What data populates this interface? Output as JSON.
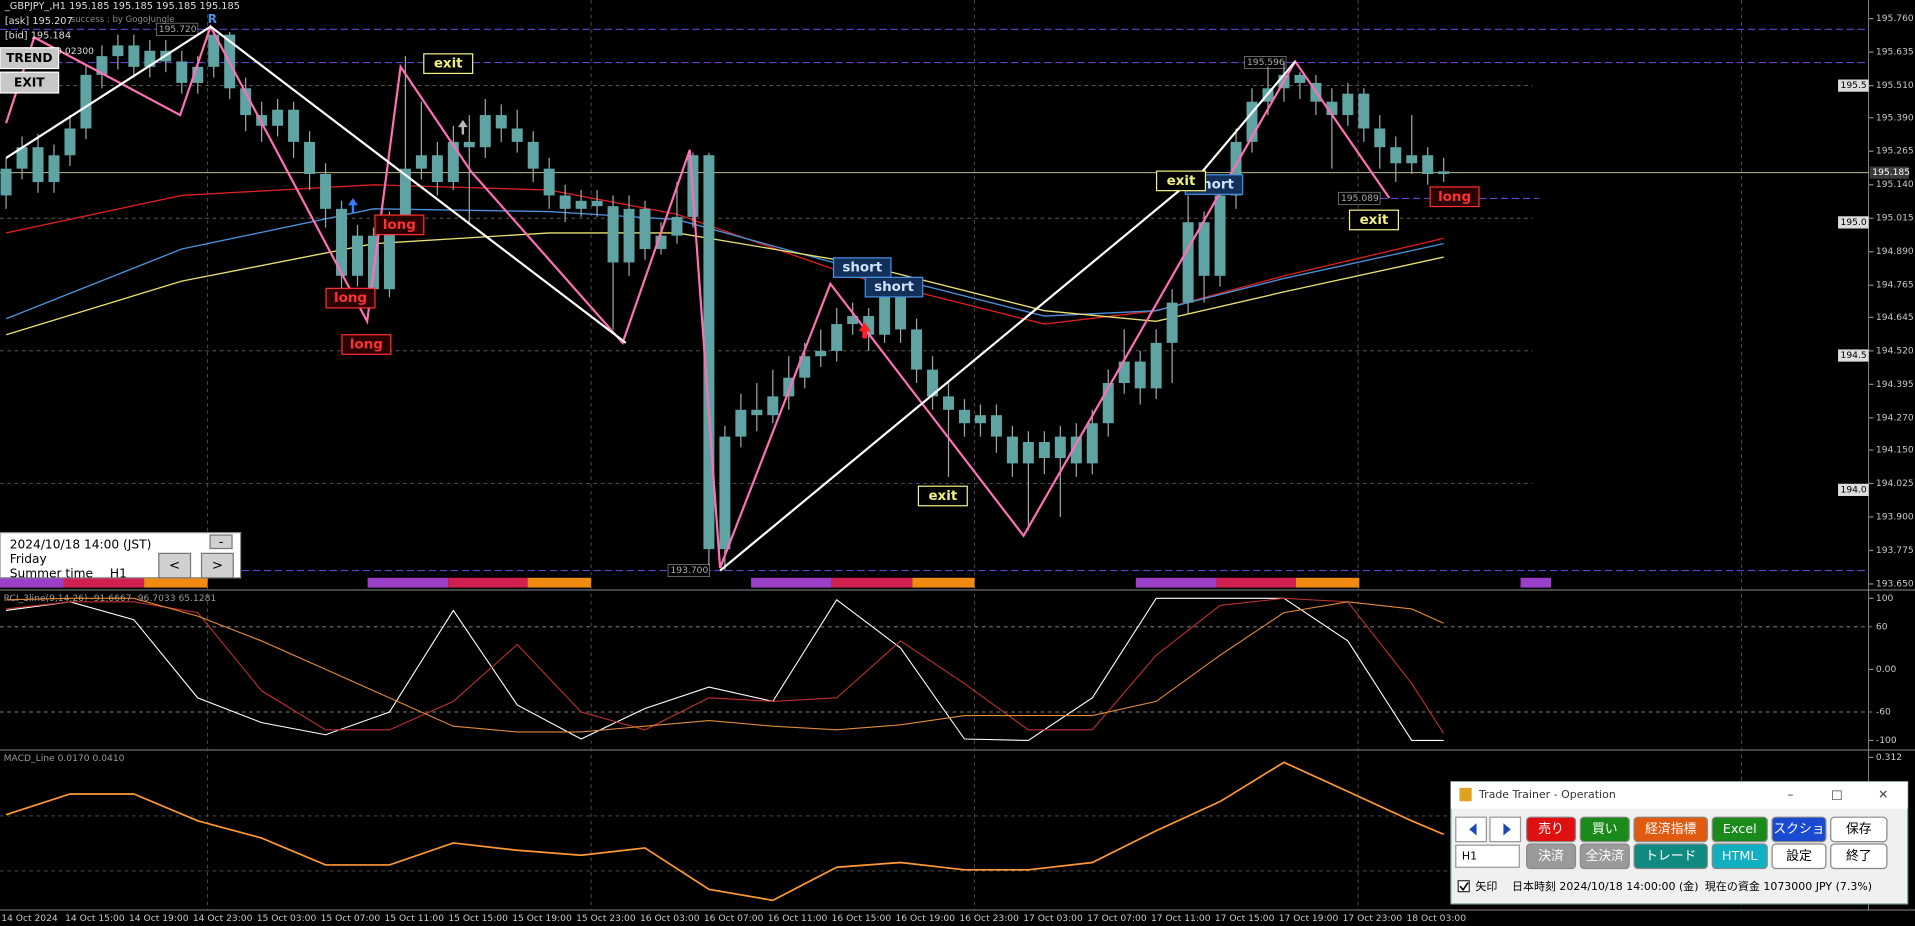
{
  "header": {
    "symbol_line": "_GBPJPY_,H1  195.185 195.185 195.185 195.185",
    "ask": "[ask] 195.207",
    "bid": "[bid] 195.184",
    "credit": "success : by GogoJungle",
    "spread": "0.02300",
    "marker": "R"
  },
  "buttons": [
    "TREND",
    "EXIT"
  ],
  "x_range": [
    -0.38,
    116.6
  ],
  "price_axis": {
    "ylim": [
      193.632,
      195.829
    ],
    "ticks": [
      {
        "value": 195.76,
        "label": "195.760"
      },
      {
        "value": 195.635,
        "label": "195.635"
      },
      {
        "value": 195.51,
        "label": "195.510"
      },
      {
        "value": 195.39,
        "label": "195.390"
      },
      {
        "value": 195.265,
        "label": "195.265"
      },
      {
        "value": 195.14,
        "label": "195.140"
      },
      {
        "value": 195.015,
        "label": "195.015"
      },
      {
        "value": 194.89,
        "label": "194.890"
      },
      {
        "value": 194.765,
        "label": "194.765"
      },
      {
        "value": 194.645,
        "label": "194.645"
      },
      {
        "value": 194.52,
        "label": "194.520"
      },
      {
        "value": 194.395,
        "label": "194.395"
      },
      {
        "value": 194.27,
        "label": "194.270"
      },
      {
        "value": 194.15,
        "label": "194.150"
      },
      {
        "value": 194.025,
        "label": "194.025"
      },
      {
        "value": 193.9,
        "label": "193.900"
      },
      {
        "value": 193.775,
        "label": "193.775"
      },
      {
        "value": 193.65,
        "label": "193.650"
      }
    ],
    "current": {
      "value": 195.185,
      "label": "195.185"
    },
    "boxed": [
      "195.5",
      "195.0",
      "194.5",
      "194.0"
    ]
  },
  "levels": [
    {
      "value": 195.72,
      "label": "195.720"
    },
    {
      "value": 195.596,
      "label": "195.596"
    },
    {
      "value": 193.7,
      "label": "193.700"
    },
    {
      "value": 195.089,
      "label": "195.089"
    }
  ],
  "candles": {
    "color": "#5fa3a3",
    "wick": "#9aa8a8",
    "open": [
      195.1,
      195.2,
      195.28,
      195.15,
      195.25,
      195.35,
      195.55,
      195.62,
      195.66,
      195.58,
      195.64,
      195.6,
      195.52,
      195.58,
      195.7,
      195.5,
      195.4,
      195.36,
      195.42,
      195.3,
      195.18,
      195.05,
      194.8,
      194.95,
      194.75,
      195.0,
      195.2,
      195.25,
      195.15,
      195.3,
      195.28,
      195.4,
      195.35,
      195.3,
      195.2,
      195.1,
      195.05,
      195.08,
      195.06,
      194.85,
      195.05,
      194.9,
      194.95,
      195.02,
      195.25,
      193.78,
      194.2,
      194.3,
      194.28,
      194.35,
      194.42,
      194.5,
      194.52,
      194.62,
      194.65,
      194.58,
      194.72,
      194.6,
      194.45,
      194.35,
      194.3,
      194.25,
      194.28,
      194.2,
      194.1,
      194.18,
      194.12,
      194.2,
      194.1,
      194.25,
      194.4,
      194.48,
      194.38,
      194.55,
      194.7,
      195.0,
      194.8,
      195.1,
      195.3,
      195.45,
      195.5,
      195.55,
      195.52,
      195.45,
      195.4,
      195.48,
      195.35,
      195.28,
      195.22,
      195.25,
      195.18
    ],
    "high": [
      195.24,
      195.32,
      195.33,
      195.29,
      195.4,
      195.59,
      195.66,
      195.7,
      195.7,
      195.68,
      195.68,
      195.64,
      195.62,
      195.72,
      195.71,
      195.54,
      195.45,
      195.46,
      195.45,
      195.34,
      195.22,
      195.08,
      194.99,
      194.98,
      195.04,
      195.62,
      195.45,
      195.3,
      195.36,
      195.4,
      195.46,
      195.44,
      195.42,
      195.34,
      195.24,
      195.14,
      195.12,
      195.12,
      195.1,
      195.1,
      195.08,
      195.0,
      195.15,
      195.26,
      195.26,
      194.24,
      194.36,
      194.4,
      194.45,
      194.5,
      194.55,
      194.6,
      194.68,
      194.7,
      194.68,
      194.78,
      194.76,
      194.64,
      194.5,
      194.4,
      194.34,
      194.32,
      194.32,
      194.24,
      194.22,
      194.22,
      194.24,
      194.25,
      194.3,
      194.45,
      194.6,
      194.52,
      194.6,
      194.75,
      195.1,
      195.04,
      195.15,
      195.35,
      195.5,
      195.58,
      195.6,
      195.56,
      195.55,
      195.5,
      195.52,
      195.5,
      195.4,
      195.32,
      195.4,
      195.28,
      195.24
    ],
    "low": [
      195.05,
      195.16,
      195.11,
      195.11,
      195.21,
      195.31,
      195.5,
      195.57,
      195.54,
      195.54,
      195.56,
      195.48,
      195.48,
      195.54,
      195.46,
      195.34,
      195.3,
      195.32,
      195.24,
      195.12,
      194.98,
      194.75,
      194.76,
      194.72,
      194.72,
      194.96,
      195.16,
      195.1,
      195.12,
      195.0,
      195.24,
      195.3,
      195.26,
      195.15,
      195.05,
      195.0,
      195.02,
      195.02,
      194.6,
      194.8,
      194.86,
      194.88,
      194.92,
      194.98,
      193.72,
      193.7,
      194.16,
      194.22,
      194.25,
      194.3,
      194.38,
      194.46,
      194.48,
      194.58,
      194.52,
      194.55,
      194.55,
      194.4,
      194.3,
      194.05,
      194.2,
      194.2,
      194.14,
      194.05,
      193.85,
      194.06,
      193.9,
      194.05,
      194.06,
      194.2,
      194.36,
      194.32,
      194.34,
      194.4,
      194.66,
      194.7,
      194.76,
      195.05,
      195.26,
      195.4,
      195.45,
      195.46,
      195.4,
      195.2,
      195.36,
      195.3,
      195.2,
      195.15,
      195.18,
      195.14,
      195.15
    ],
    "close": [
      195.2,
      195.28,
      195.15,
      195.25,
      195.35,
      195.55,
      195.62,
      195.66,
      195.58,
      195.64,
      195.6,
      195.52,
      195.58,
      195.7,
      195.5,
      195.4,
      195.36,
      195.42,
      195.3,
      195.18,
      195.05,
      194.8,
      194.95,
      194.75,
      195.0,
      195.2,
      195.25,
      195.15,
      195.3,
      195.28,
      195.4,
      195.35,
      195.3,
      195.2,
      195.1,
      195.05,
      195.08,
      195.06,
      194.85,
      195.05,
      194.9,
      194.95,
      195.02,
      195.25,
      193.78,
      194.2,
      194.3,
      194.28,
      194.35,
      194.42,
      194.5,
      194.52,
      194.62,
      194.65,
      194.58,
      194.72,
      194.6,
      194.45,
      194.35,
      194.3,
      194.25,
      194.28,
      194.2,
      194.1,
      194.18,
      194.12,
      194.2,
      194.1,
      194.25,
      194.4,
      194.48,
      194.38,
      194.55,
      194.7,
      195.0,
      194.8,
      195.1,
      195.3,
      195.45,
      195.5,
      195.55,
      195.52,
      195.45,
      195.4,
      195.48,
      195.35,
      195.28,
      195.22,
      195.25,
      195.18,
      195.19
    ]
  },
  "moving_averages": {
    "x": [
      0,
      11,
      23,
      34,
      42,
      53,
      65,
      72,
      80,
      90
    ],
    "series": [
      {
        "color": "#d82020",
        "values": [
          194.96,
          195.1,
          195.14,
          195.12,
          195.03,
          194.8,
          194.62,
          194.67,
          194.8,
          194.94
        ]
      },
      {
        "color": "#4a90d9",
        "values": [
          194.64,
          194.9,
          195.05,
          195.04,
          195.01,
          194.83,
          194.65,
          194.67,
          194.79,
          194.92
        ]
      },
      {
        "color": "#e8e070",
        "values": [
          194.58,
          194.78,
          194.92,
          194.96,
          194.96,
          194.85,
          194.67,
          194.63,
          194.74,
          194.87
        ]
      }
    ]
  },
  "zigzag": [
    {
      "color": "#ff6fb4",
      "x": [
        0,
        1.76,
        10.9,
        12.8,
        22.6,
        24.7,
        29.1,
        38.6,
        42.8,
        44.7,
        51.6,
        63.7,
        80.7,
        86.6
      ],
      "values": [
        195.37,
        195.69,
        195.4,
        195.73,
        194.63,
        195.58,
        195.19,
        194.55,
        195.27,
        193.71,
        194.77,
        193.83,
        195.6,
        195.09
      ]
    },
    {
      "color": "#ffffff",
      "x": [
        0,
        12.8,
        38.8,
        null,
        44.7,
        74.9,
        80.7
      ],
      "values": [
        195.24,
        195.73,
        194.55,
        null,
        193.7,
        195.19,
        195.6
      ]
    }
  ],
  "signals": [
    {
      "text": "long",
      "color": "#ff3030"
    },
    {
      "text": "long",
      "color": "#ff3030"
    },
    {
      "text": "long",
      "color": "#ff3030"
    },
    {
      "text": "long",
      "color": "#ff3030"
    },
    {
      "text": "short",
      "color": "#4a8ee0"
    },
    {
      "text": "short",
      "color": "#4a8ee0"
    },
    {
      "text": "short",
      "color": "#4a8ee0"
    },
    {
      "text": "exit",
      "color": "#f0f080"
    },
    {
      "text": "exit",
      "color": "#f0f080"
    },
    {
      "text": "exit",
      "color": "#f0f080"
    },
    {
      "text": "exit",
      "color": "#f0f080"
    }
  ],
  "rci": {
    "label": "RCI_3line(9,14,26) -91.6667 -96.7033 65.1281",
    "ylim": [
      -110,
      110
    ],
    "ticks": [
      100,
      60,
      {
        "value": 0,
        "label": "0.00"
      },
      -60,
      -100
    ],
    "x": [
      0,
      4,
      8,
      12,
      16,
      20,
      24,
      28,
      32,
      36,
      40,
      44,
      48,
      52,
      56,
      60,
      64,
      68,
      72,
      76,
      80,
      84,
      88,
      90
    ],
    "series": [
      {
        "color": "#ffffff",
        "values": [
          83,
          95,
          70,
          -40,
          -75,
          -92,
          -60,
          83,
          -50,
          -98,
          -55,
          -25,
          -45,
          98,
          30,
          -98,
          -100,
          -40,
          100,
          100,
          100,
          40,
          -100,
          -100
        ]
      },
      {
        "color": "#c03030",
        "values": [
          85,
          95,
          95,
          80,
          -30,
          -85,
          -85,
          -45,
          35,
          -60,
          -85,
          -40,
          -45,
          -40,
          40,
          -20,
          -85,
          -85,
          20,
          90,
          100,
          95,
          -20,
          -90
        ]
      },
      {
        "color": "#e08a3a",
        "values": [
          98,
          100,
          100,
          75,
          40,
          0,
          -40,
          -80,
          -88,
          -88,
          -80,
          -72,
          -80,
          -85,
          -78,
          -65,
          -65,
          -65,
          -45,
          20,
          80,
          95,
          85,
          65
        ]
      }
    ]
  },
  "macd": {
    "label": "MACD_Line 0.0170 0.0410",
    "ylim": [
      -0.287,
      0.331
    ],
    "ticks": [
      0.312
    ],
    "color": "#ff9933",
    "x": [
      0,
      4,
      8,
      12,
      16,
      20,
      24,
      28,
      32,
      36,
      40,
      44,
      48,
      52,
      56,
      60,
      64,
      68,
      72,
      76,
      80,
      84,
      88,
      90
    ],
    "values": [
      0.092,
      0.172,
      0.172,
      0.069,
      0.003,
      -0.1,
      -0.1,
      -0.016,
      -0.044,
      -0.063,
      -0.035,
      -0.194,
      -0.236,
      -0.109,
      -0.091,
      -0.119,
      -0.119,
      -0.091,
      0.031,
      0.143,
      0.293,
      0.181,
      0.069,
      0.017
    ]
  },
  "time_axis": {
    "labels": [
      "14 Oct 2024",
      "14 Oct 15:00",
      "14 Oct 19:00",
      "14 Oct 23:00",
      "15 Oct 03:00",
      "15 Oct 07:00",
      "15 Oct 11:00",
      "15 Oct 15:00",
      "15 Oct 19:00",
      "15 Oct 23:00",
      "16 Oct 03:00",
      "16 Oct 07:00",
      "16 Oct 11:00",
      "16 Oct 15:00",
      "16 Oct 19:00",
      "16 Oct 23:00",
      "17 Oct 03:00",
      "17 Oct 07:00",
      "17 Oct 11:00",
      "17 Oct 15:00",
      "17 Oct 19:00",
      "17 Oct 23:00",
      "18 Oct 03:00"
    ]
  },
  "date_panel": {
    "datetime": "2024/10/18 14:00 (JST)",
    "day": "Friday",
    "summer": "Summer time",
    "timeframe": "H1",
    "buttons": [
      "-",
      "<",
      ">"
    ]
  },
  "trade_window": {
    "title": "Trade Trainer - Operation",
    "row1": [
      "売り",
      "買い",
      "経済指標",
      "Excel",
      "スクショ",
      "保存"
    ],
    "timeframe": "H1",
    "row2": [
      "決済",
      "全決済",
      "トレード",
      "HTML",
      "設定",
      "終了"
    ],
    "checkbox": "矢印",
    "time": "日本時刻 2024/10/18 14:00:00 (金)",
    "funds": "現在の資金 1073000 JPY (7.3%)"
  }
}
